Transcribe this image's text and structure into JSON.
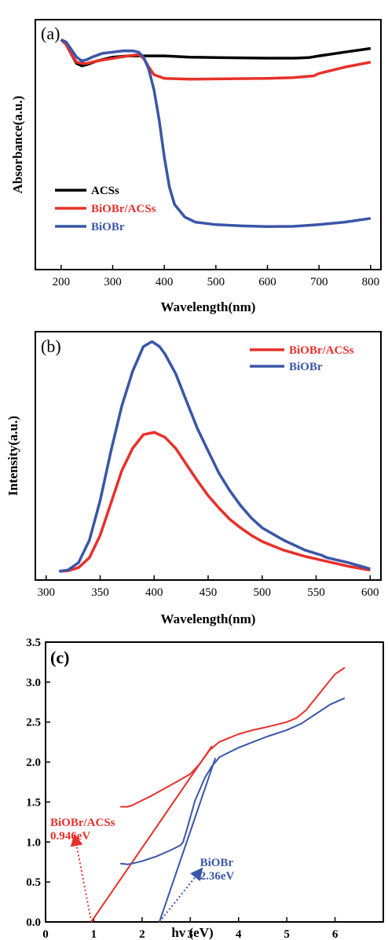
{
  "chart_data": [
    {
      "type": "line",
      "panel_label": "(a)",
      "xlabel": "Wavelength(nm)",
      "ylabel": "Absorbance(a.u.)",
      "xlim": [
        150,
        820
      ],
      "ylim": [
        0,
        1
      ],
      "xticks": [
        200,
        300,
        400,
        500,
        600,
        700,
        800
      ],
      "legend": "bottom-left",
      "series": [
        {
          "name": "ACSs",
          "color": "#000000",
          "x": [
            200,
            210,
            220,
            230,
            240,
            250,
            270,
            300,
            330,
            350,
            380,
            400,
            450,
            500,
            600,
            650,
            680,
            700,
            750,
            800
          ],
          "y": [
            0.92,
            0.9,
            0.86,
            0.825,
            0.815,
            0.82,
            0.835,
            0.85,
            0.855,
            0.855,
            0.855,
            0.855,
            0.85,
            0.848,
            0.846,
            0.846,
            0.848,
            0.855,
            0.87,
            0.885
          ]
        },
        {
          "name": "BiOBr/ACSs",
          "color": "#e8302a",
          "x": [
            200,
            210,
            220,
            230,
            240,
            250,
            270,
            300,
            330,
            350,
            360,
            370,
            380,
            400,
            450,
            500,
            600,
            650,
            690,
            700,
            750,
            800
          ],
          "y": [
            0.92,
            0.9,
            0.86,
            0.83,
            0.825,
            0.825,
            0.835,
            0.845,
            0.855,
            0.86,
            0.845,
            0.81,
            0.78,
            0.765,
            0.762,
            0.763,
            0.765,
            0.768,
            0.775,
            0.785,
            0.81,
            0.83
          ]
        },
        {
          "name": "BiOBr",
          "color": "#3a56a8",
          "x": [
            200,
            210,
            220,
            230,
            240,
            250,
            260,
            280,
            300,
            320,
            340,
            350,
            360,
            370,
            380,
            390,
            400,
            410,
            420,
            440,
            460,
            500,
            550,
            600,
            650,
            700,
            750,
            800
          ],
          "y": [
            0.92,
            0.91,
            0.88,
            0.85,
            0.835,
            0.84,
            0.85,
            0.865,
            0.87,
            0.875,
            0.875,
            0.87,
            0.85,
            0.8,
            0.72,
            0.6,
            0.45,
            0.33,
            0.26,
            0.21,
            0.19,
            0.18,
            0.175,
            0.172,
            0.173,
            0.18,
            0.19,
            0.205
          ]
        }
      ]
    },
    {
      "type": "line",
      "panel_label": "(b)",
      "xlabel": "Wavelength(nm)",
      "ylabel": "Intensity(a.u.)",
      "xlim": [
        290,
        610
      ],
      "ylim": [
        0,
        1
      ],
      "xticks": [
        300,
        350,
        400,
        450,
        500,
        550,
        600
      ],
      "legend": "top-right",
      "series": [
        {
          "name": "BiOBr/ACSs",
          "color": "#e8302a",
          "x": [
            312,
            320,
            330,
            340,
            350,
            360,
            370,
            380,
            390,
            400,
            410,
            420,
            430,
            440,
            450,
            460,
            470,
            480,
            490,
            500,
            520,
            540,
            560,
            580,
            600
          ],
          "y": [
            0.035,
            0.037,
            0.05,
            0.09,
            0.18,
            0.31,
            0.44,
            0.53,
            0.585,
            0.595,
            0.575,
            0.53,
            0.465,
            0.4,
            0.34,
            0.29,
            0.245,
            0.21,
            0.18,
            0.155,
            0.12,
            0.095,
            0.075,
            0.055,
            0.04
          ]
        },
        {
          "name": "BiOBr",
          "color": "#3a56a8",
          "x": [
            312,
            320,
            330,
            340,
            350,
            360,
            370,
            380,
            390,
            398,
            405,
            410,
            420,
            430,
            440,
            450,
            460,
            470,
            480,
            490,
            500,
            520,
            540,
            555,
            560,
            580,
            600
          ],
          "y": [
            0.035,
            0.04,
            0.07,
            0.16,
            0.32,
            0.52,
            0.7,
            0.84,
            0.94,
            0.96,
            0.94,
            0.91,
            0.83,
            0.72,
            0.61,
            0.52,
            0.43,
            0.36,
            0.3,
            0.25,
            0.21,
            0.16,
            0.12,
            0.1,
            0.09,
            0.07,
            0.045
          ]
        }
      ]
    },
    {
      "type": "line",
      "panel_label": "(c)",
      "xlabel": "hv (eV)",
      "ylabel": "",
      "xlim": [
        0,
        7
      ],
      "ylim": [
        0,
        3.5
      ],
      "xticks": [
        0,
        1,
        2,
        3,
        4,
        5,
        6
      ],
      "yticks": [
        0.0,
        0.5,
        1.0,
        1.5,
        2.0,
        2.5,
        3.0,
        3.5
      ],
      "xtick_labels": [
        "0",
        "1",
        "2",
        "3",
        "4",
        "5",
        "6"
      ],
      "ytick_labels": [
        "0.0",
        "0.5",
        "1.0",
        "1.5",
        "2.0",
        "2.5",
        "3.0",
        "3.5"
      ],
      "series": [
        {
          "name": "BiOBr/ACSs",
          "color": "#e8302a",
          "x": [
            1.55,
            1.7,
            1.8,
            2.0,
            2.2,
            2.5,
            2.8,
            3.0,
            3.2,
            3.4,
            3.6,
            3.8,
            4.0,
            4.3,
            4.6,
            5.0,
            5.2,
            5.4,
            5.6,
            5.8,
            6.0,
            6.2
          ],
          "y": [
            1.44,
            1.44,
            1.46,
            1.52,
            1.58,
            1.68,
            1.78,
            1.85,
            1.98,
            2.15,
            2.25,
            2.3,
            2.35,
            2.4,
            2.44,
            2.5,
            2.55,
            2.65,
            2.8,
            2.95,
            3.1,
            3.18
          ]
        },
        {
          "name": "BiOBr",
          "color": "#3a56a8",
          "x": [
            1.55,
            1.7,
            1.8,
            2.0,
            2.3,
            2.6,
            2.8,
            2.85,
            2.95,
            3.1,
            3.3,
            3.45,
            3.55,
            3.6,
            3.8,
            4.0,
            4.3,
            4.6,
            5.0,
            5.3,
            5.6,
            5.9,
            6.2
          ],
          "y": [
            0.73,
            0.72,
            0.73,
            0.76,
            0.82,
            0.9,
            0.96,
            1.0,
            1.2,
            1.52,
            1.8,
            1.95,
            2.02,
            2.06,
            2.12,
            2.18,
            2.25,
            2.32,
            2.4,
            2.48,
            2.6,
            2.72,
            2.8
          ]
        }
      ],
      "fit_lines": [
        {
          "color": "#e8302a",
          "x": [
            0.946,
            3.45
          ],
          "y": [
            0,
            2.2
          ]
        },
        {
          "color": "#3a56a8",
          "x": [
            2.36,
            3.52
          ],
          "y": [
            0,
            2.05
          ]
        }
      ],
      "annotations": [
        {
          "color": "#e8302a",
          "lines": [
            "BiOBr/ACSs",
            "0.946eV"
          ],
          "text_x": 0.0,
          "text_y": 1.2,
          "arrow_from": [
            0.95,
            0.0
          ],
          "arrow_to": [
            0.62,
            1.03
          ]
        },
        {
          "color": "#3a56a8",
          "lines": [
            "BiOBr",
            "2.36eV"
          ],
          "text_x": 3.2,
          "text_y": 0.7,
          "arrow_from": [
            2.36,
            0.0
          ],
          "arrow_to": [
            3.18,
            0.62
          ]
        }
      ]
    }
  ]
}
